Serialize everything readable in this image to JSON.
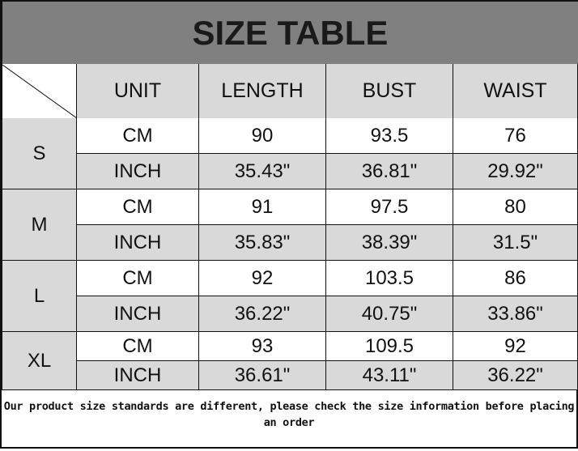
{
  "title": "SIZE TABLE",
  "headers": [
    "UNIT",
    "LENGTH",
    "BUST",
    "WAIST"
  ],
  "rows": [
    {
      "size": "S",
      "cm": [
        "CM",
        "90",
        "93.5",
        "76"
      ],
      "inch": [
        "INCH",
        "35.43\"",
        "36.81\"",
        "29.92\""
      ]
    },
    {
      "size": "M",
      "cm": [
        "CM",
        "91",
        "97.5",
        "80"
      ],
      "inch": [
        "INCH",
        "35.83\"",
        "38.39\"",
        "31.5\""
      ]
    },
    {
      "size": "L",
      "cm": [
        "CM",
        "92",
        "103.5",
        "86"
      ],
      "inch": [
        "INCH",
        "36.22\"",
        "40.75\"",
        "33.86\""
      ]
    },
    {
      "size": "XL",
      "cm": [
        "CM",
        "93",
        "109.5",
        "92"
      ],
      "inch": [
        "INCH",
        "36.61\"",
        "43.11\"",
        "36.22\""
      ]
    }
  ],
  "note": "Our product size standards are different, please check the size information before placing an order"
}
